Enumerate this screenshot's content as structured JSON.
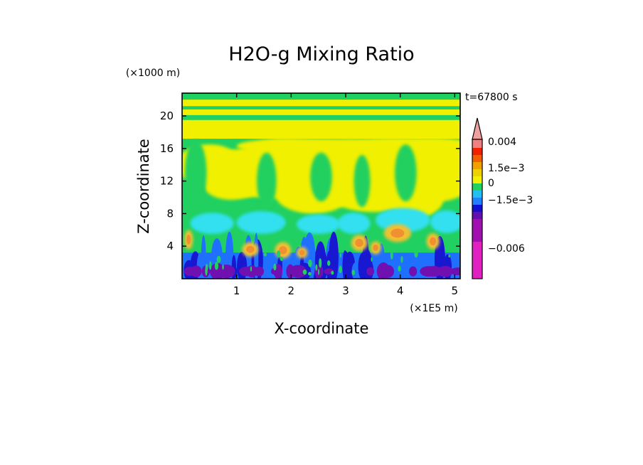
{
  "chart_data": {
    "type": "heatmap",
    "title": "H2O-g Mixing Ratio",
    "time_label": "t=67800 s",
    "xlabel": "X-coordinate",
    "ylabel": "Z-coordinate",
    "x_unit": "(×1E5 m)",
    "y_unit": "(×1000 m)",
    "xlim": [
      0,
      5.1
    ],
    "ylim": [
      0,
      22.8
    ],
    "xticks": [
      "1",
      "2",
      "3",
      "4",
      "5"
    ],
    "yticks": [
      "4",
      "8",
      "12",
      "16",
      "20"
    ],
    "colorbar": {
      "labels": [
        "0.004",
        "1.5e−3",
        "0",
        "−1.5e−3",
        "−0.006"
      ],
      "colors": [
        "#f0a0a0",
        "#f08080",
        "#f02000",
        "#f06000",
        "#f0a000",
        "#f0d000",
        "#f0f000",
        "#20d060",
        "#20c0f0",
        "#2080ff",
        "#1010d0",
        "#6010b0",
        "#a010b0",
        "#e020c0"
      ]
    },
    "palette": {
      "yellow": "#f0f000",
      "green": "#20d060",
      "cyan": "#30e0f0",
      "light_orange": "#f0c030",
      "orange": "#f09030",
      "blue": "#2070ff",
      "dark_blue": "#1818d0",
      "purple": "#7010b0"
    }
  }
}
